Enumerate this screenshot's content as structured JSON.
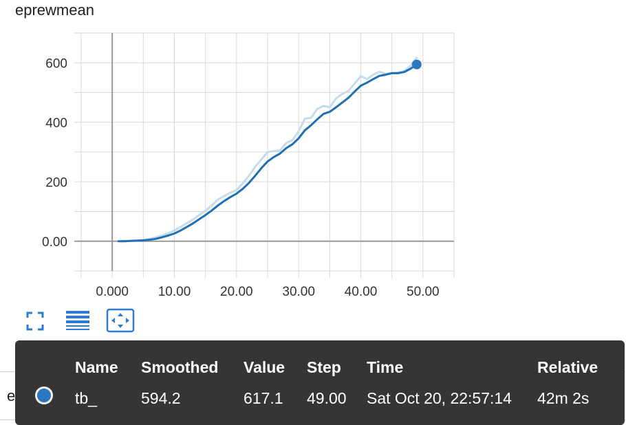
{
  "colors": {
    "accent": "#2c77c0",
    "smoothed_line": "#1f6fb5",
    "raw_line": "#c5dcef",
    "tooltip_bg": "#353535"
  },
  "chart_data": {
    "type": "line",
    "title": "eprewmean",
    "xlim": [
      -5,
      55
    ],
    "ylim": [
      -100,
      700
    ],
    "x_ticks": [
      0,
      10,
      20,
      30,
      40,
      50
    ],
    "x_tick_labels": [
      "0.000",
      "10.00",
      "20.00",
      "30.00",
      "40.00",
      "50.00"
    ],
    "y_ticks": [
      0,
      200,
      400,
      600
    ],
    "y_tick_labels": [
      "0.00",
      "200",
      "400",
      "600"
    ],
    "grid": true,
    "series": [
      {
        "style": "raw",
        "x": [
          1,
          2,
          3,
          4,
          5,
          6,
          7,
          8,
          9,
          10,
          11,
          12,
          13,
          14,
          15,
          16,
          17,
          18,
          19,
          20,
          21,
          22,
          23,
          24,
          25,
          26,
          27,
          28,
          29,
          30,
          31,
          32,
          33,
          34,
          35,
          36,
          37,
          38,
          39,
          40,
          41,
          42,
          43,
          44,
          45,
          46,
          47,
          48,
          49
        ],
        "y": [
          0,
          0,
          1,
          2,
          4,
          8,
          13,
          19,
          27,
          36,
          48,
          61,
          73,
          88,
          103,
          120,
          140,
          152,
          163,
          172,
          195,
          220,
          250,
          275,
          300,
          303,
          305,
          330,
          340,
          370,
          412,
          415,
          445,
          455,
          450,
          480,
          495,
          505,
          530,
          555,
          545,
          560,
          570,
          563,
          565,
          567,
          572,
          590,
          617
        ]
      },
      {
        "name": "tb_",
        "style": "smoothed",
        "x": [
          1,
          2,
          3,
          4,
          5,
          6,
          7,
          8,
          9,
          10,
          11,
          12,
          13,
          14,
          15,
          16,
          17,
          18,
          19,
          20,
          21,
          22,
          23,
          24,
          25,
          26,
          27,
          28,
          29,
          30,
          31,
          32,
          33,
          34,
          35,
          36,
          37,
          38,
          39,
          40,
          41,
          42,
          43,
          44,
          45,
          46,
          47,
          48,
          49
        ],
        "y": [
          0,
          0,
          1,
          2,
          3,
          5,
          8,
          13,
          19,
          26,
          36,
          48,
          60,
          74,
          88,
          103,
          120,
          135,
          148,
          160,
          176,
          196,
          220,
          246,
          268,
          283,
          295,
          313,
          326,
          346,
          373,
          390,
          410,
          428,
          435,
          450,
          466,
          482,
          503,
          523,
          533,
          545,
          556,
          560,
          565,
          565,
          569,
          580,
          594.2
        ]
      }
    ]
  },
  "toolbar": {
    "fit_icon": "fit-domain-icon",
    "log_icon": "list-lines-icon",
    "zoom_icon": "fit-to-data-icon"
  },
  "background_run_label": "explained_varia",
  "tooltip": {
    "headers": {
      "name": "Name",
      "smoothed": "Smoothed",
      "value": "Value",
      "step": "Step",
      "time": "Time",
      "relative": "Relative"
    },
    "row": {
      "name": "tb_",
      "smoothed": "594.2",
      "value": "617.1",
      "step": "49.00",
      "time": "Sat Oct 20, 22:57:14",
      "relative": "42m 2s"
    }
  }
}
